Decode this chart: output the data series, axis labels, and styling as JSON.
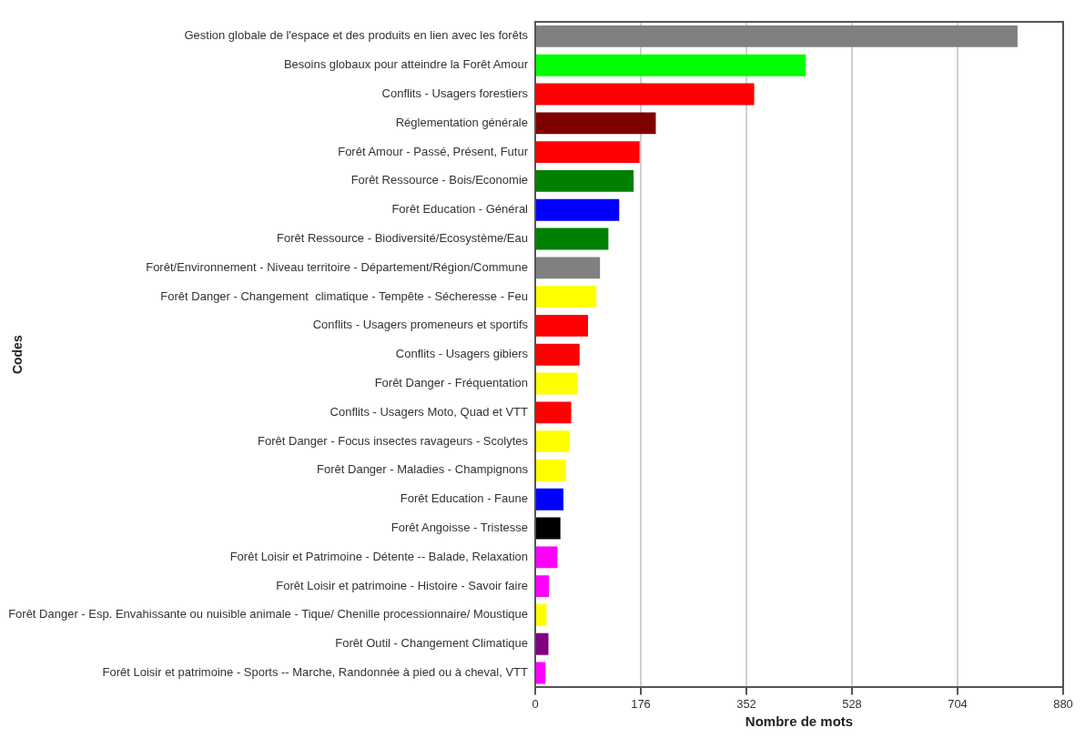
{
  "chart_data": {
    "type": "bar",
    "orientation": "horizontal",
    "xlabel": "Nombre de mots",
    "ylabel": "Codes",
    "categories": [
      "Gestion globale de l'espace et des produits en lien avec les forêts",
      "Besoins globaux pour atteindre la Forêt Amour",
      "Conflits - Usagers forestiers",
      "Réglementation générale",
      "Forêt Amour - Passé, Présent, Futur",
      "Forêt Ressource - Bois/Economie",
      "Forêt Education - Général",
      "Forêt Ressource - Biodiversité/Ecosystème/Eau",
      "Forêt/Environnement - Niveau territoire - Département/Région/Commune",
      "Forêt Danger - Changement  climatique - Tempête - Sécheresse - Feu",
      "Conflits - Usagers promeneurs et sportifs",
      "Conflits - Usagers gibiers",
      "Forêt Danger - Fréquentation",
      "Conflits - Usagers Moto, Quad et VTT",
      "Forêt Danger - Focus insectes ravageurs - Scolytes",
      "Forêt Danger - Maladies - Champignons",
      "Forêt Education - Faune",
      "Forêt Angoisse - Tristesse",
      "Forêt Loisir et Patrimoine - Détente -- Balade, Relaxation",
      "Forêt Loisir et patrimoine - Histoire - Savoir faire",
      "Forêt Danger - Esp. Envahissante ou nuisible animale - Tique/ Chenille processionnaire/ Moustique",
      "Forêt Outil - Changement Climatique",
      "Forêt Loisir et patrimoine - Sports -- Marche, Randonnée à pied ou à cheval, VTT"
    ],
    "values": [
      804,
      451,
      365,
      201,
      174,
      164,
      140,
      122,
      108,
      102,
      88,
      74,
      70,
      60,
      57,
      51,
      47,
      42,
      37,
      23,
      19,
      22,
      17
    ],
    "colors": [
      "#808080",
      "#00ff00",
      "#ff0000",
      "#800000",
      "#ff0000",
      "#008000",
      "#0000ff",
      "#008000",
      "#808080",
      "#ffff00",
      "#ff0000",
      "#ff0000",
      "#ffff00",
      "#ff0000",
      "#ffff00",
      "#ffff00",
      "#0000ff",
      "#000000",
      "#ff00ff",
      "#ff00ff",
      "#ffff00",
      "#800080",
      "#ff00ff"
    ],
    "xlim": [
      0,
      880
    ],
    "xticks": [
      0,
      176,
      352,
      528,
      704,
      880
    ],
    "grid": "x",
    "legend": false
  }
}
